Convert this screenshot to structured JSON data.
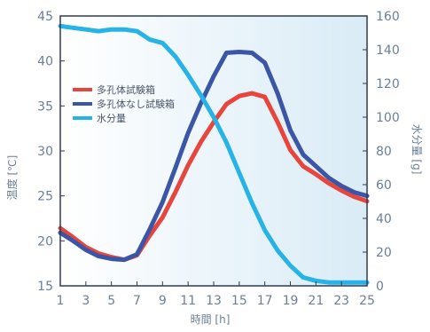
{
  "chart_data": {
    "type": "line",
    "title": "",
    "xlabel": "時間 [h]",
    "ylabel_left": "温度 [℃]",
    "ylabel_right": "水分量 [g]",
    "x": [
      1,
      2,
      3,
      4,
      5,
      6,
      7,
      8,
      9,
      10,
      11,
      12,
      13,
      14,
      15,
      16,
      17,
      18,
      19,
      20,
      21,
      22,
      23,
      24,
      25
    ],
    "x_ticks": [
      1,
      3,
      5,
      7,
      9,
      11,
      13,
      15,
      17,
      19,
      21,
      23,
      25
    ],
    "ylim_left": [
      15,
      45
    ],
    "y_ticks_left": [
      15,
      20,
      25,
      30,
      35,
      40,
      45
    ],
    "ylim_right": [
      0,
      160
    ],
    "y_ticks_right": [
      0,
      20,
      40,
      60,
      80,
      100,
      120,
      140,
      160
    ],
    "legend_position": "left-middle",
    "series": [
      {
        "name": "多孔体試験箱",
        "axis": "left",
        "color": "#e8463c",
        "values": [
          21.4,
          20.4,
          19.3,
          18.6,
          18.2,
          17.9,
          18.4,
          20.6,
          22.6,
          25.4,
          28.4,
          31.0,
          33.2,
          35.2,
          36.1,
          36.4,
          36.0,
          33.2,
          30.1,
          28.3,
          27.4,
          26.4,
          25.6,
          24.9,
          24.4
        ]
      },
      {
        "name": "多孔体なし試験箱",
        "axis": "left",
        "color": "#3b56a6",
        "values": [
          20.9,
          20.0,
          19.0,
          18.3,
          18.0,
          17.9,
          18.5,
          21.3,
          24.3,
          28.1,
          32.0,
          35.3,
          38.3,
          40.9,
          41.0,
          40.9,
          39.8,
          36.4,
          32.3,
          29.6,
          28.3,
          27.0,
          26.1,
          25.4,
          25.0
        ]
      },
      {
        "name": "水分量",
        "axis": "right",
        "color": "#27b3e6",
        "values": [
          154,
          153,
          152,
          151,
          152,
          152,
          151,
          146,
          144,
          136,
          125,
          113,
          100,
          85,
          67,
          49,
          33,
          21,
          12,
          5,
          3,
          2,
          2,
          2,
          2
        ]
      }
    ]
  },
  "colors": {
    "plot_gradient_left": "#ffffff",
    "plot_gradient_right": "#d9ebf6",
    "frame": "#2d3b55",
    "text": "#6b7f99"
  }
}
